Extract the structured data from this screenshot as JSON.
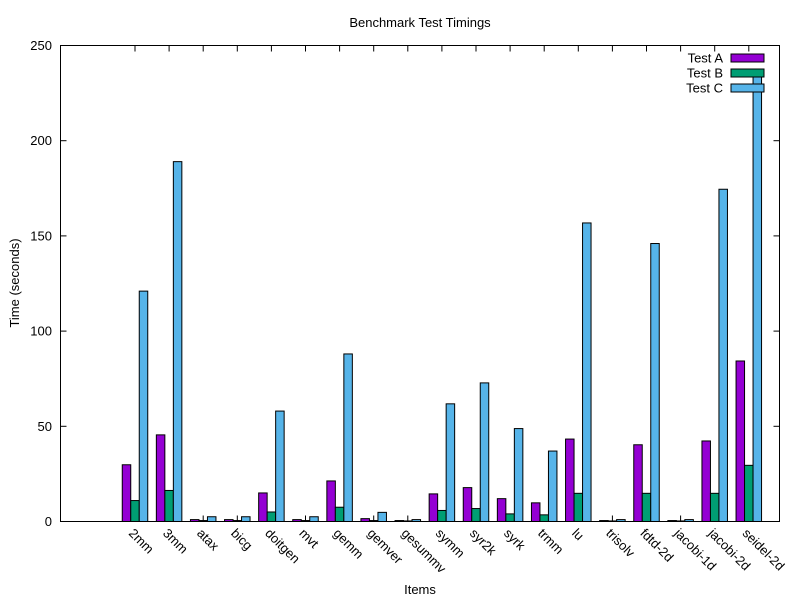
{
  "chart_data": {
    "type": "bar",
    "title": "Benchmark Test Timings",
    "xlabel": "Items",
    "ylabel": "Time (seconds)",
    "ylim": [
      0,
      250
    ],
    "yticks": [
      0,
      50,
      100,
      150,
      200,
      250
    ],
    "grid": false,
    "legend_position": "top-right",
    "categories": [
      "2mm",
      "3mm",
      "atax",
      "bicg",
      "doitgen",
      "mvt",
      "gemm",
      "gemver",
      "gesummv",
      "symm",
      "syr2k",
      "syrk",
      "trmm",
      "lu",
      "trisolv",
      "fdtd-2d",
      "jacobi-1d",
      "jacobi-2d",
      "seidel-2d"
    ],
    "series": [
      {
        "name": "Test A",
        "color": "#9400d3",
        "values": [
          29.8,
          45.5,
          1.0,
          1.0,
          15.0,
          1.0,
          21.3,
          1.5,
          0.5,
          14.5,
          17.8,
          12.0,
          9.8,
          43.3,
          0.5,
          40.3,
          0.5,
          42.3,
          84.3
        ]
      },
      {
        "name": "Test B",
        "color": "#009e73",
        "values": [
          11.0,
          16.3,
          0.5,
          0.5,
          5.0,
          0.5,
          7.5,
          0.5,
          0.3,
          5.8,
          6.8,
          4.0,
          3.5,
          14.8,
          0.3,
          14.8,
          0.3,
          14.8,
          29.5
        ]
      },
      {
        "name": "Test C",
        "color": "#56b4e9",
        "values": [
          121.0,
          189.0,
          2.5,
          2.5,
          58.0,
          2.5,
          88.0,
          4.8,
          1.0,
          61.8,
          72.8,
          48.8,
          37.0,
          156.8,
          1.0,
          146.0,
          1.0,
          174.5,
          235.8
        ]
      }
    ]
  }
}
